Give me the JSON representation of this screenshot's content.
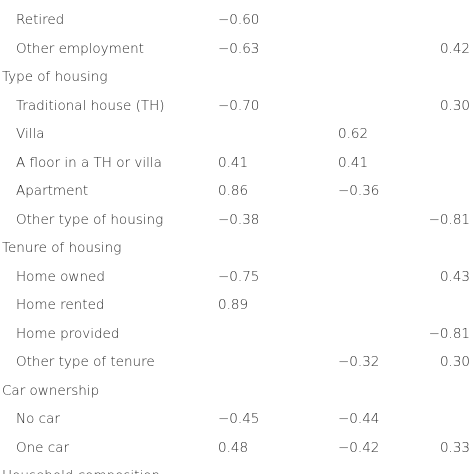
{
  "table": {
    "groups": [
      {
        "items": [
          {
            "label": "Retired",
            "values": [
              "−0.60",
              null,
              null
            ]
          },
          {
            "label": "Other employment",
            "values": [
              "−0.63",
              null,
              "0.42"
            ]
          }
        ]
      },
      {
        "title": "Type of housing",
        "items": [
          {
            "label": "Traditional house (TH)",
            "values": [
              "−0.70",
              null,
              "0.30"
            ]
          },
          {
            "label": "Villa",
            "values": [
              null,
              "0.62",
              null
            ]
          },
          {
            "label": "A floor in a TH or villa",
            "values": [
              "0.41",
              "0.41",
              null
            ]
          },
          {
            "label": "Apartment",
            "values": [
              "0.86",
              "−0.36",
              null
            ]
          },
          {
            "label": "Other type of housing",
            "values": [
              "−0.38",
              null,
              "−0.81"
            ]
          }
        ]
      },
      {
        "title": "Tenure of housing",
        "items": [
          {
            "label": "Home owned",
            "values": [
              "−0.75",
              null,
              "0.43"
            ]
          },
          {
            "label": "Home rented",
            "values": [
              "0.89",
              null,
              null
            ]
          },
          {
            "label": "Home provided",
            "values": [
              null,
              null,
              "−0.81"
            ]
          },
          {
            "label": "Other type of tenure",
            "values": [
              null,
              "−0.32",
              "0.30"
            ]
          }
        ]
      },
      {
        "title": "Car ownership",
        "items": [
          {
            "label": "No car",
            "values": [
              "−0.45",
              "−0.44",
              null
            ]
          },
          {
            "label": "One car",
            "values": [
              "0.48",
              "−0.42",
              "0.33"
            ]
          }
        ]
      },
      {
        "title": "Household composition",
        "items": []
      }
    ]
  }
}
